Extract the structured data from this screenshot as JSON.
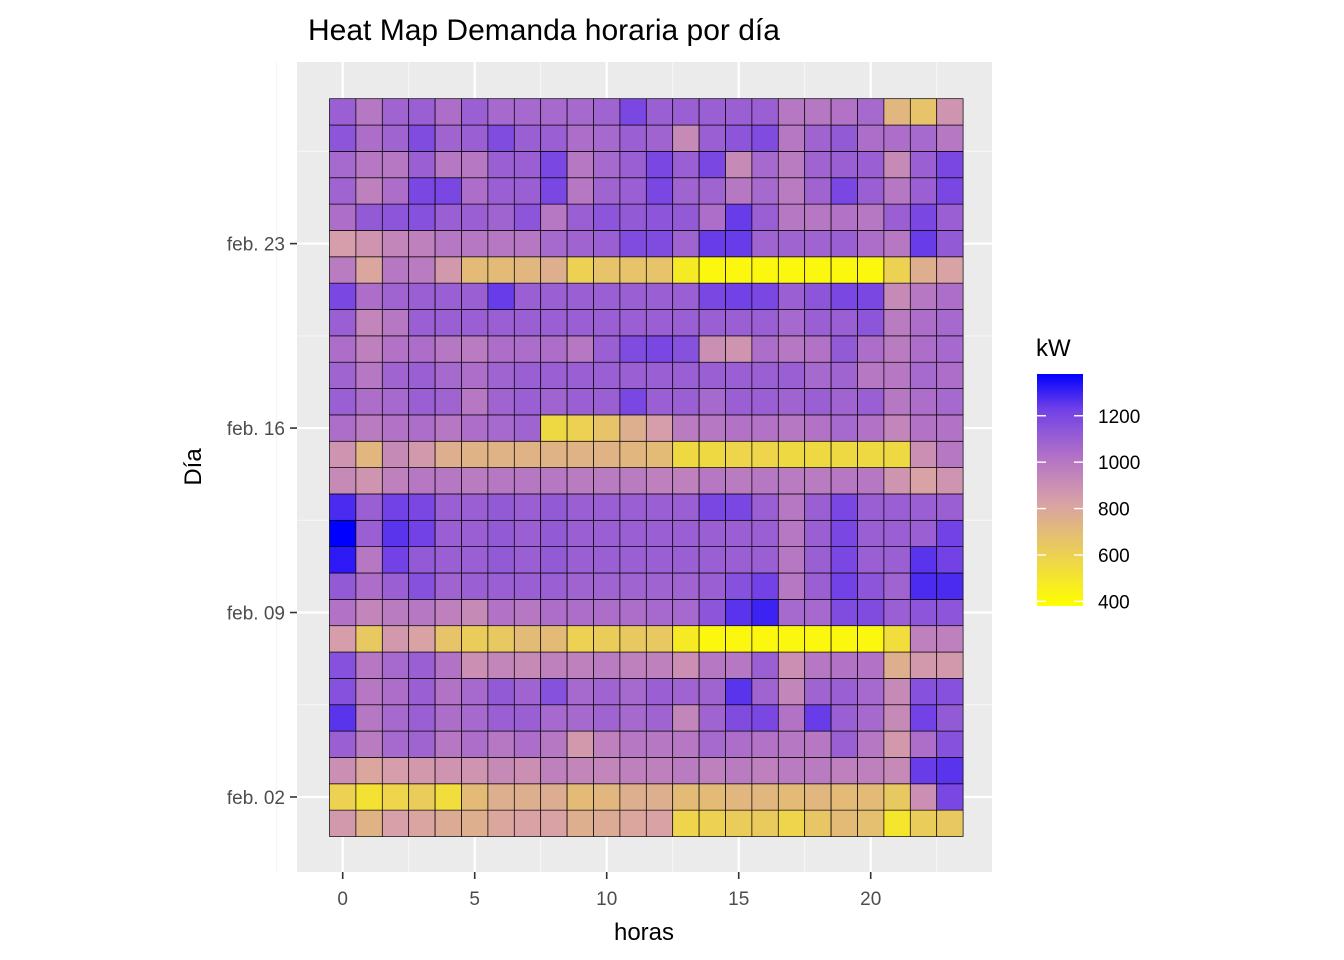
{
  "chart_data": {
    "type": "heatmap",
    "title": "Heat Map Demanda horaria por día",
    "xlabel": "horas",
    "ylabel": "Día",
    "x_categories": [
      0,
      1,
      2,
      3,
      4,
      5,
      6,
      7,
      8,
      9,
      10,
      11,
      12,
      13,
      14,
      15,
      16,
      17,
      18,
      19,
      20,
      21,
      22,
      23
    ],
    "x_ticks": [
      0,
      5,
      10,
      15,
      20
    ],
    "x_tick_labels": [
      "0",
      "5",
      "10",
      "15",
      "20"
    ],
    "y_days_from_bottom": [
      "feb. 01",
      "feb. 02",
      "feb. 03",
      "feb. 04",
      "feb. 05",
      "feb. 06",
      "feb. 07",
      "feb. 08",
      "feb. 09",
      "feb. 10",
      "feb. 11",
      "feb. 12",
      "feb. 13",
      "feb. 14",
      "feb. 15",
      "feb. 16",
      "feb. 17",
      "feb. 18",
      "feb. 19",
      "feb. 20",
      "feb. 21",
      "feb. 22",
      "feb. 23",
      "feb. 24",
      "feb. 25",
      "feb. 26",
      "feb. 27",
      "feb. 28"
    ],
    "y_ticks": [
      "feb. 02",
      "feb. 09",
      "feb. 16",
      "feb. 23"
    ],
    "y_tick_labels": [
      "feb. 02",
      "feb. 09",
      "feb. 16",
      "feb. 23"
    ],
    "values_rows_from_bottom": [
      [
        860,
        740,
        830,
        810,
        780,
        760,
        800,
        820,
        820,
        760,
        780,
        800,
        820,
        580,
        600,
        620,
        630,
        580,
        650,
        700,
        680,
        500,
        620,
        640
      ],
      [
        600,
        520,
        580,
        620,
        540,
        700,
        760,
        760,
        770,
        700,
        720,
        760,
        760,
        700,
        700,
        720,
        720,
        700,
        720,
        700,
        700,
        640,
        900,
        1200
      ],
      [
        900,
        800,
        840,
        860,
        880,
        880,
        920,
        900,
        960,
        940,
        940,
        960,
        960,
        980,
        960,
        980,
        960,
        980,
        980,
        960,
        960,
        920,
        1240,
        1260
      ],
      [
        1100,
        980,
        1060,
        1080,
        1000,
        1040,
        1000,
        1040,
        1000,
        860,
        960,
        1000,
        1000,
        1000,
        1060,
        1040,
        1020,
        1000,
        1000,
        1100,
        1000,
        860,
        1040,
        1160
      ],
      [
        1260,
        1000,
        1060,
        1100,
        1040,
        1060,
        1100,
        1100,
        1060,
        1060,
        1080,
        1060,
        1080,
        940,
        1080,
        1180,
        1200,
        1020,
        1240,
        1100,
        1060,
        920,
        1220,
        1120
      ],
      [
        1160,
        1000,
        1040,
        1100,
        1020,
        1060,
        1120,
        1080,
        1160,
        1060,
        1080,
        1060,
        1100,
        1080,
        1080,
        1260,
        1080,
        940,
        1080,
        1100,
        1060,
        920,
        1160,
        1160
      ],
      [
        1160,
        1000,
        1060,
        1100,
        1020,
        900,
        940,
        920,
        960,
        960,
        980,
        960,
        960,
        900,
        1000,
        1000,
        1100,
        900,
        1000,
        1020,
        1020,
        760,
        860,
        860
      ],
      [
        840,
        640,
        860,
        820,
        660,
        620,
        640,
        700,
        700,
        600,
        620,
        640,
        640,
        480,
        420,
        420,
        420,
        420,
        420,
        420,
        420,
        540,
        960,
        960
      ],
      [
        1020,
        940,
        980,
        1000,
        960,
        920,
        1020,
        1000,
        1040,
        1040,
        1040,
        1040,
        1060,
        1060,
        1140,
        1260,
        1300,
        1060,
        1060,
        1180,
        1180,
        1100,
        1140,
        1140
      ],
      [
        1120,
        1040,
        1100,
        1160,
        1080,
        1100,
        1100,
        1100,
        1100,
        1080,
        1080,
        1080,
        1080,
        1080,
        1100,
        1160,
        1220,
        1000,
        1100,
        1220,
        1140,
        1080,
        1280,
        1280
      ],
      [
        1320,
        1000,
        1220,
        1120,
        1100,
        1100,
        1120,
        1100,
        1120,
        1100,
        1100,
        1100,
        1100,
        1100,
        1100,
        1100,
        1100,
        1000,
        1100,
        1200,
        1100,
        1100,
        1260,
        1220
      ],
      [
        1380,
        1100,
        1260,
        1220,
        1100,
        1100,
        1120,
        1100,
        1120,
        1100,
        1100,
        1100,
        1100,
        1100,
        1100,
        1100,
        1100,
        1000,
        1100,
        1200,
        1100,
        1100,
        1100,
        1220
      ],
      [
        1280,
        1100,
        1220,
        1200,
        1100,
        1100,
        1120,
        1100,
        1120,
        1100,
        1100,
        1100,
        1100,
        1100,
        1200,
        1200,
        1100,
        1000,
        1100,
        1200,
        1100,
        1100,
        1100,
        1100
      ],
      [
        920,
        880,
        960,
        1000,
        1000,
        980,
        1000,
        1000,
        1000,
        980,
        980,
        980,
        960,
        960,
        1000,
        980,
        1000,
        980,
        980,
        1000,
        1000,
        880,
        820,
        880
      ],
      [
        880,
        720,
        920,
        860,
        760,
        740,
        740,
        740,
        740,
        740,
        740,
        720,
        700,
        560,
        560,
        580,
        580,
        560,
        560,
        560,
        560,
        560,
        900,
        1000
      ],
      [
        1040,
        980,
        1020,
        1040,
        1000,
        1040,
        1060,
        1080,
        560,
        600,
        660,
        760,
        840,
        980,
        1000,
        1020,
        1020,
        1000,
        1020,
        1060,
        1020,
        940,
        1020,
        1020
      ],
      [
        1100,
        1040,
        1060,
        1100,
        1080,
        1000,
        1080,
        1100,
        1080,
        1100,
        1100,
        1200,
        1100,
        1100,
        1060,
        1100,
        1100,
        1080,
        1100,
        1080,
        1100,
        1000,
        1040,
        1060
      ],
      [
        1080,
        1000,
        1080,
        1100,
        1060,
        1040,
        1080,
        1100,
        1100,
        1100,
        1100,
        1100,
        1100,
        1100,
        1100,
        1100,
        1100,
        1100,
        1060,
        1080,
        1000,
        1000,
        1060,
        1040
      ],
      [
        1040,
        960,
        1020,
        1040,
        1000,
        980,
        1040,
        1040,
        1040,
        1000,
        1100,
        1180,
        1200,
        1160,
        900,
        880,
        1040,
        1000,
        1020,
        1120,
        1040,
        980,
        1040,
        1060
      ],
      [
        1100,
        940,
        1000,
        1100,
        1100,
        1100,
        1100,
        1100,
        1100,
        1100,
        1100,
        1100,
        1100,
        1100,
        1100,
        1100,
        1100,
        1060,
        1100,
        1100,
        1140,
        980,
        1040,
        1060
      ],
      [
        1200,
        1040,
        1080,
        1100,
        1100,
        1100,
        1240,
        1100,
        1100,
        1100,
        1100,
        1100,
        1100,
        1100,
        1200,
        1220,
        1200,
        1100,
        1140,
        1200,
        1200,
        920,
        1000,
        1040
      ],
      [
        980,
        800,
        1000,
        980,
        860,
        700,
        700,
        720,
        760,
        600,
        660,
        660,
        660,
        480,
        420,
        420,
        420,
        420,
        420,
        420,
        420,
        600,
        760,
        820
      ],
      [
        840,
        880,
        940,
        960,
        1000,
        1000,
        1000,
        1000,
        1060,
        1080,
        1100,
        1180,
        1180,
        1080,
        1240,
        1240,
        1080,
        1080,
        1080,
        1100,
        1040,
        1000,
        1240,
        1120
      ],
      [
        1040,
        1120,
        1140,
        1160,
        1100,
        1100,
        1080,
        1140,
        1000,
        1100,
        1140,
        1120,
        1140,
        1120,
        1040,
        1240,
        1100,
        1000,
        1000,
        1020,
        1000,
        1100,
        1200,
        1100
      ],
      [
        1080,
        960,
        1040,
        1200,
        1200,
        1040,
        1100,
        1100,
        1200,
        1000,
        1080,
        1100,
        1200,
        1080,
        1080,
        1000,
        1060,
        980,
        1080,
        1200,
        1100,
        1000,
        1100,
        1200
      ],
      [
        1060,
        1000,
        1000,
        1100,
        1000,
        1000,
        1100,
        1100,
        1200,
        1000,
        1060,
        1100,
        1200,
        1100,
        1200,
        920,
        1060,
        980,
        1080,
        1100,
        1100,
        920,
        1100,
        1200
      ],
      [
        1140,
        1040,
        1080,
        1180,
        1080,
        1100,
        1180,
        1100,
        1100,
        1040,
        1060,
        1100,
        1080,
        920,
        1100,
        1140,
        1180,
        1000,
        1080,
        1120,
        1040,
        1040,
        1060,
        1000
      ],
      [
        1100,
        1000,
        1080,
        1100,
        1040,
        1100,
        1060,
        1060,
        1060,
        1060,
        1080,
        1200,
        1100,
        1100,
        1100,
        1100,
        1100,
        1000,
        1000,
        1020,
        1060,
        720,
        660,
        880
      ]
    ],
    "legend": {
      "title": "kW",
      "breaks": [
        400,
        600,
        800,
        1000,
        1200
      ],
      "break_labels": [
        "400",
        "600",
        "800",
        "1000",
        "1200"
      ],
      "range": [
        380,
        1380
      ],
      "low_color": "#ffff00",
      "mid_color": "#d86ee0",
      "high_color": "#0000ff",
      "placement": "right"
    },
    "colors": {
      "panel_background": "#ebebeb",
      "grid_major": "#ffffff",
      "grid_minor": "#f5f5f5",
      "tile_border": "#000000"
    }
  }
}
